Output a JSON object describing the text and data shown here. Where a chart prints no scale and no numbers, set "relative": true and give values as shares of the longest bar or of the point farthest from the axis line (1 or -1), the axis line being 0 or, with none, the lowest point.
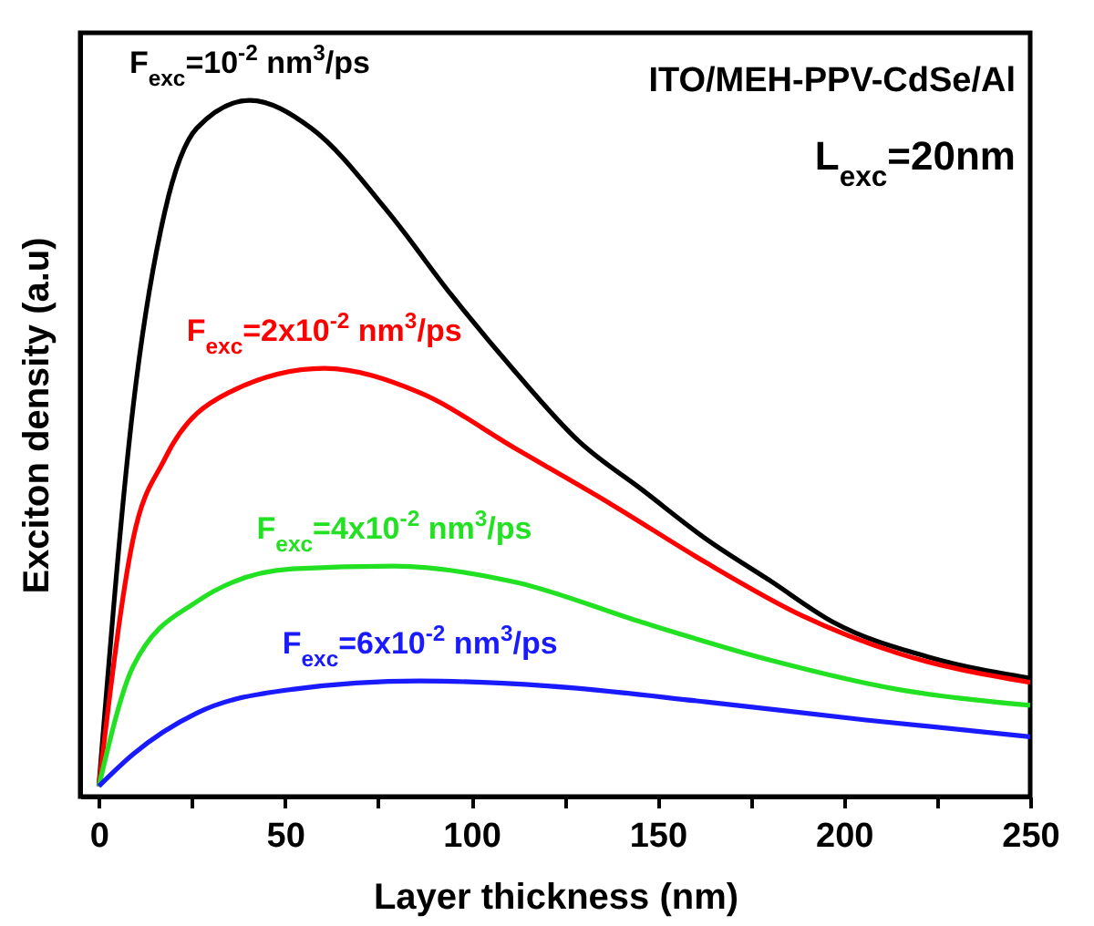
{
  "chart_data": {
    "type": "line",
    "relative": true,
    "xlabel": "Layer thickness (nm)",
    "ylabel": "Exciton density (a.u)",
    "xlim": [
      -5,
      250
    ],
    "xticks": [
      0,
      {
        "value": 25,
        "label": null
      },
      50,
      {
        "value": 75,
        "label": null
      },
      100,
      {
        "value": 125,
        "label": null
      },
      150,
      {
        "value": 175,
        "label": null
      },
      200,
      {
        "value": 225,
        "label": null
      },
      250
    ],
    "annotations": [
      "ITO/MEH-PPV-CdSe/Al",
      "L$_{exc}$=20nm"
    ],
    "series": [
      {
        "name": "F$_{exc}$=10$^{-2}$ nm$^{3}$/ps",
        "color": "#000000",
        "x": [
          0,
          9.2,
          17.7,
          26.3,
          40.5,
          57,
          77.6,
          94.7,
          111.8,
          128.9,
          146,
          163,
          180.2,
          197.3,
          223,
          250
        ],
        "values": [
          0.015,
          0.56,
          0.84,
          0.96,
          1,
          0.96,
          0.84,
          0.72,
          0.61,
          0.51,
          0.44,
          0.37,
          0.31,
          0.25,
          0.2,
          0.17
        ]
      },
      {
        "name": "F$_{exc}$=2x10$^{-2}$ nm$^{3}$/ps",
        "color": "#ff0000",
        "x": [
          0,
          9.2,
          17.7,
          34.8,
          60.5,
          86.2,
          111.8,
          137.5,
          163,
          188.7,
          214.4,
          250
        ],
        "values": [
          0.015,
          0.37,
          0.485,
          0.58,
          0.615,
          0.58,
          0.5,
          0.42,
          0.336,
          0.26,
          0.206,
          0.164
        ]
      },
      {
        "name": "F$_{exc}$=4x10$^{-2}$ nm$^{3}$/ps",
        "color": "#22e022",
        "x": [
          0,
          9.2,
          26.3,
          51.9,
          79.3,
          111.8,
          146,
          180.2,
          214.4,
          250
        ],
        "values": [
          0.015,
          0.187,
          0.28,
          0.327,
          0.331,
          0.308,
          0.25,
          0.196,
          0.154,
          0.131
        ]
      },
      {
        "name": "F$_{exc}$=6x10$^{-2}$ nm$^{3}$/ps",
        "color": "#1a1aff",
        "x": [
          0,
          9.2,
          26.3,
          51.9,
          86.2,
          120.4,
          163,
          205.9,
          250
        ],
        "values": [
          0.015,
          0.061,
          0.12,
          0.154,
          0.166,
          0.159,
          0.136,
          0.11,
          0.086
        ]
      }
    ]
  }
}
